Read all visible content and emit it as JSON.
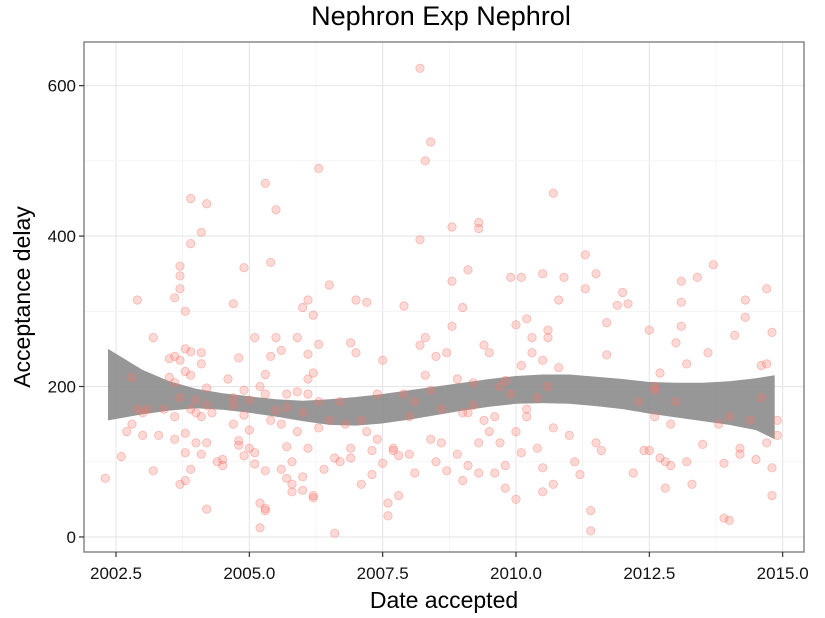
{
  "chart_data": {
    "type": "scatter",
    "title": "Nephron Exp Nephrol",
    "xlabel": "Date accepted",
    "ylabel": "Acceptance delay",
    "xlim": [
      2001.9,
      2015.4
    ],
    "ylim": [
      -20,
      658
    ],
    "x_ticks": [
      {
        "value": 2002.5,
        "label": "2002.5"
      },
      {
        "value": 2005.0,
        "label": "2005.0"
      },
      {
        "value": 2007.5,
        "label": "2007.5"
      },
      {
        "value": 2010.0,
        "label": "2010.0"
      },
      {
        "value": 2012.5,
        "label": "2012.5"
      },
      {
        "value": 2015.0,
        "label": "2015.0"
      }
    ],
    "y_ticks": [
      {
        "value": 0,
        "label": "0"
      },
      {
        "value": 200,
        "label": "200"
      },
      {
        "value": 400,
        "label": "400"
      },
      {
        "value": 600,
        "label": "600"
      }
    ],
    "grid": true,
    "legend": "none",
    "point_color": "#f8766d",
    "band_color": "#8c8c8c",
    "points": [
      [
        2002.3,
        78
      ],
      [
        2002.6,
        107
      ],
      [
        2002.7,
        140
      ],
      [
        2002.8,
        150
      ],
      [
        2002.8,
        212
      ],
      [
        2002.9,
        315
      ],
      [
        2002.9,
        170
      ],
      [
        2003.0,
        165
      ],
      [
        2003.0,
        135
      ],
      [
        2003.1,
        170
      ],
      [
        2003.2,
        88
      ],
      [
        2003.2,
        265
      ],
      [
        2003.3,
        135
      ],
      [
        2003.4,
        170
      ],
      [
        2003.5,
        237
      ],
      [
        2003.5,
        212
      ],
      [
        2003.6,
        318
      ],
      [
        2003.6,
        240
      ],
      [
        2003.6,
        205
      ],
      [
        2003.6,
        160
      ],
      [
        2003.6,
        130
      ],
      [
        2003.7,
        347
      ],
      [
        2003.7,
        330
      ],
      [
        2003.7,
        360
      ],
      [
        2003.7,
        235
      ],
      [
        2003.7,
        185
      ],
      [
        2003.7,
        70
      ],
      [
        2003.8,
        300
      ],
      [
        2003.8,
        250
      ],
      [
        2003.8,
        220
      ],
      [
        2003.8,
        138
      ],
      [
        2003.8,
        112
      ],
      [
        2003.8,
        75
      ],
      [
        2003.9,
        450
      ],
      [
        2003.9,
        390
      ],
      [
        2003.9,
        246
      ],
      [
        2003.9,
        215
      ],
      [
        2003.9,
        170
      ],
      [
        2003.9,
        90
      ],
      [
        2004.0,
        182
      ],
      [
        2004.0,
        165
      ],
      [
        2004.0,
        125
      ],
      [
        2004.1,
        405
      ],
      [
        2004.1,
        245
      ],
      [
        2004.1,
        230
      ],
      [
        2004.1,
        160
      ],
      [
        2004.1,
        110
      ],
      [
        2004.2,
        443
      ],
      [
        2004.2,
        198
      ],
      [
        2004.2,
        175
      ],
      [
        2004.2,
        125
      ],
      [
        2004.2,
        37
      ],
      [
        2004.3,
        165
      ],
      [
        2004.4,
        100
      ],
      [
        2004.5,
        95
      ],
      [
        2004.5,
        103
      ],
      [
        2004.6,
        210
      ],
      [
        2004.7,
        185
      ],
      [
        2004.7,
        175
      ],
      [
        2004.7,
        310
      ],
      [
        2004.7,
        150
      ],
      [
        2004.8,
        238
      ],
      [
        2004.8,
        122
      ],
      [
        2004.8,
        128
      ],
      [
        2004.9,
        358
      ],
      [
        2004.9,
        195
      ],
      [
        2004.9,
        162
      ],
      [
        2004.9,
        108
      ],
      [
        2005.0,
        182
      ],
      [
        2005.0,
        142
      ],
      [
        2005.0,
        118
      ],
      [
        2005.1,
        265
      ],
      [
        2005.1,
        97
      ],
      [
        2005.1,
        112
      ],
      [
        2005.2,
        200
      ],
      [
        2005.2,
        12
      ],
      [
        2005.2,
        45
      ],
      [
        2005.3,
        470
      ],
      [
        2005.3,
        38
      ],
      [
        2005.3,
        35
      ],
      [
        2005.3,
        216
      ],
      [
        2005.3,
        190
      ],
      [
        2005.3,
        88
      ],
      [
        2005.4,
        365
      ],
      [
        2005.4,
        240
      ],
      [
        2005.4,
        155
      ],
      [
        2005.5,
        435
      ],
      [
        2005.5,
        265
      ],
      [
        2005.5,
        168
      ],
      [
        2005.6,
        248
      ],
      [
        2005.6,
        150
      ],
      [
        2005.6,
        90
      ],
      [
        2005.7,
        190
      ],
      [
        2005.7,
        172
      ],
      [
        2005.7,
        120
      ],
      [
        2005.7,
        78
      ],
      [
        2005.8,
        70
      ],
      [
        2005.8,
        60
      ],
      [
        2005.8,
        100
      ],
      [
        2005.9,
        265
      ],
      [
        2005.9,
        193
      ],
      [
        2005.9,
        140
      ],
      [
        2006.0,
        305
      ],
      [
        2006.0,
        165
      ],
      [
        2006.0,
        80
      ],
      [
        2006.0,
        62
      ],
      [
        2006.1,
        315
      ],
      [
        2006.1,
        243
      ],
      [
        2006.1,
        210
      ],
      [
        2006.1,
        190
      ],
      [
        2006.1,
        118
      ],
      [
        2006.2,
        295
      ],
      [
        2006.2,
        218
      ],
      [
        2006.2,
        55
      ],
      [
        2006.2,
        52
      ],
      [
        2006.3,
        490
      ],
      [
        2006.3,
        256
      ],
      [
        2006.3,
        180
      ],
      [
        2006.3,
        145
      ],
      [
        2006.4,
        90
      ],
      [
        2006.5,
        335
      ],
      [
        2006.5,
        155
      ],
      [
        2006.6,
        105
      ],
      [
        2006.6,
        5
      ],
      [
        2006.7,
        180
      ],
      [
        2006.7,
        100
      ],
      [
        2006.8,
        150
      ],
      [
        2006.9,
        258
      ],
      [
        2006.9,
        105
      ],
      [
        2006.9,
        118
      ],
      [
        2007.0,
        315
      ],
      [
        2007.0,
        245
      ],
      [
        2007.1,
        155
      ],
      [
        2007.1,
        70
      ],
      [
        2007.2,
        312
      ],
      [
        2007.2,
        140
      ],
      [
        2007.3,
        115
      ],
      [
        2007.3,
        83
      ],
      [
        2007.4,
        190
      ],
      [
        2007.4,
        130
      ],
      [
        2007.5,
        235
      ],
      [
        2007.5,
        98
      ],
      [
        2007.6,
        45
      ],
      [
        2007.6,
        28
      ],
      [
        2007.7,
        118
      ],
      [
        2007.7,
        115
      ],
      [
        2007.8,
        108
      ],
      [
        2007.8,
        55
      ],
      [
        2007.9,
        307
      ],
      [
        2007.9,
        190
      ],
      [
        2008.0,
        160
      ],
      [
        2008.0,
        110
      ],
      [
        2008.1,
        180
      ],
      [
        2008.1,
        85
      ],
      [
        2008.2,
        623
      ],
      [
        2008.2,
        395
      ],
      [
        2008.2,
        255
      ],
      [
        2008.3,
        500
      ],
      [
        2008.3,
        265
      ],
      [
        2008.3,
        215
      ],
      [
        2008.4,
        525
      ],
      [
        2008.4,
        195
      ],
      [
        2008.4,
        130
      ],
      [
        2008.5,
        240
      ],
      [
        2008.5,
        100
      ],
      [
        2008.6,
        170
      ],
      [
        2008.6,
        125
      ],
      [
        2008.7,
        245
      ],
      [
        2008.7,
        88
      ],
      [
        2008.8,
        412
      ],
      [
        2008.8,
        340
      ],
      [
        2008.8,
        280
      ],
      [
        2008.9,
        210
      ],
      [
        2008.9,
        110
      ],
      [
        2009.0,
        305
      ],
      [
        2009.0,
        165
      ],
      [
        2009.0,
        75
      ],
      [
        2009.1,
        355
      ],
      [
        2009.1,
        165
      ],
      [
        2009.1,
        95
      ],
      [
        2009.2,
        205
      ],
      [
        2009.2,
        175
      ],
      [
        2009.3,
        418
      ],
      [
        2009.3,
        410
      ],
      [
        2009.3,
        125
      ],
      [
        2009.3,
        85
      ],
      [
        2009.4,
        255
      ],
      [
        2009.4,
        155
      ],
      [
        2009.5,
        245
      ],
      [
        2009.5,
        140
      ],
      [
        2009.6,
        160
      ],
      [
        2009.6,
        85
      ],
      [
        2009.7,
        125
      ],
      [
        2009.7,
        200
      ],
      [
        2009.8,
        208
      ],
      [
        2009.8,
        95
      ],
      [
        2009.8,
        65
      ],
      [
        2009.9,
        345
      ],
      [
        2009.9,
        190
      ],
      [
        2010.0,
        282
      ],
      [
        2010.0,
        140
      ],
      [
        2010.0,
        50
      ],
      [
        2010.1,
        345
      ],
      [
        2010.1,
        228
      ],
      [
        2010.1,
        112
      ],
      [
        2010.2,
        290
      ],
      [
        2010.2,
        170
      ],
      [
        2010.2,
        160
      ],
      [
        2010.3,
        265
      ],
      [
        2010.3,
        245
      ],
      [
        2010.4,
        185
      ],
      [
        2010.4,
        118
      ],
      [
        2010.5,
        350
      ],
      [
        2010.5,
        235
      ],
      [
        2010.5,
        92
      ],
      [
        2010.5,
        60
      ],
      [
        2010.6,
        275
      ],
      [
        2010.6,
        265
      ],
      [
        2010.6,
        200
      ],
      [
        2010.7,
        457
      ],
      [
        2010.7,
        145
      ],
      [
        2010.7,
        70
      ],
      [
        2010.8,
        315
      ],
      [
        2010.8,
        225
      ],
      [
        2010.9,
        345
      ],
      [
        2011.0,
        135
      ],
      [
        2011.1,
        100
      ],
      [
        2011.2,
        83
      ],
      [
        2011.3,
        375
      ],
      [
        2011.3,
        330
      ],
      [
        2011.4,
        35
      ],
      [
        2011.4,
        8
      ],
      [
        2011.5,
        350
      ],
      [
        2011.5,
        125
      ],
      [
        2011.6,
        115
      ],
      [
        2011.7,
        285
      ],
      [
        2011.7,
        242
      ],
      [
        2011.9,
        308
      ],
      [
        2012.0,
        325
      ],
      [
        2012.1,
        310
      ],
      [
        2012.2,
        85
      ],
      [
        2012.3,
        180
      ],
      [
        2012.4,
        115
      ],
      [
        2012.5,
        275
      ],
      [
        2012.5,
        115
      ],
      [
        2012.6,
        195
      ],
      [
        2012.6,
        200
      ],
      [
        2012.6,
        160
      ],
      [
        2012.7,
        218
      ],
      [
        2012.7,
        105
      ],
      [
        2012.8,
        100
      ],
      [
        2012.8,
        65
      ],
      [
        2012.9,
        150
      ],
      [
        2012.9,
        95
      ],
      [
        2013.0,
        258
      ],
      [
        2013.0,
        180
      ],
      [
        2013.1,
        340
      ],
      [
        2013.1,
        312
      ],
      [
        2013.1,
        280
      ],
      [
        2013.2,
        230
      ],
      [
        2013.2,
        100
      ],
      [
        2013.3,
        70
      ],
      [
        2013.4,
        345
      ],
      [
        2013.5,
        123
      ],
      [
        2013.6,
        245
      ],
      [
        2013.7,
        362
      ],
      [
        2013.8,
        150
      ],
      [
        2013.9,
        98
      ],
      [
        2013.9,
        25
      ],
      [
        2014.0,
        160
      ],
      [
        2014.0,
        22
      ],
      [
        2014.1,
        268
      ],
      [
        2014.2,
        118
      ],
      [
        2014.2,
        110
      ],
      [
        2014.3,
        315
      ],
      [
        2014.3,
        292
      ],
      [
        2014.4,
        155
      ],
      [
        2014.5,
        103
      ],
      [
        2014.6,
        228
      ],
      [
        2014.6,
        185
      ],
      [
        2014.7,
        330
      ],
      [
        2014.7,
        230
      ],
      [
        2014.7,
        125
      ],
      [
        2014.8,
        272
      ],
      [
        2014.8,
        92
      ],
      [
        2014.8,
        55
      ],
      [
        2014.9,
        155
      ],
      [
        2014.9,
        135
      ]
    ],
    "smooth_band": {
      "x": [
        2002.35,
        2003.0,
        2003.5,
        2004.0,
        2004.5,
        2005.0,
        2005.5,
        2006.0,
        2006.5,
        2007.0,
        2007.5,
        2008.0,
        2008.5,
        2009.0,
        2009.5,
        2010.0,
        2010.5,
        2011.0,
        2011.5,
        2012.0,
        2012.5,
        2013.0,
        2013.5,
        2014.0,
        2014.5,
        2014.85
      ],
      "upper": [
        250,
        222,
        207,
        197,
        191,
        187,
        183,
        181,
        183,
        186,
        190,
        195,
        200,
        205,
        210,
        214,
        216,
        216,
        213,
        210,
        206,
        205,
        205,
        207,
        211,
        215
      ],
      "lower": [
        155,
        163,
        168,
        171,
        169,
        165,
        160,
        154,
        149,
        148,
        151,
        156,
        162,
        168,
        173,
        177,
        178,
        177,
        174,
        170,
        164,
        159,
        154,
        149,
        142,
        130
      ]
    }
  }
}
